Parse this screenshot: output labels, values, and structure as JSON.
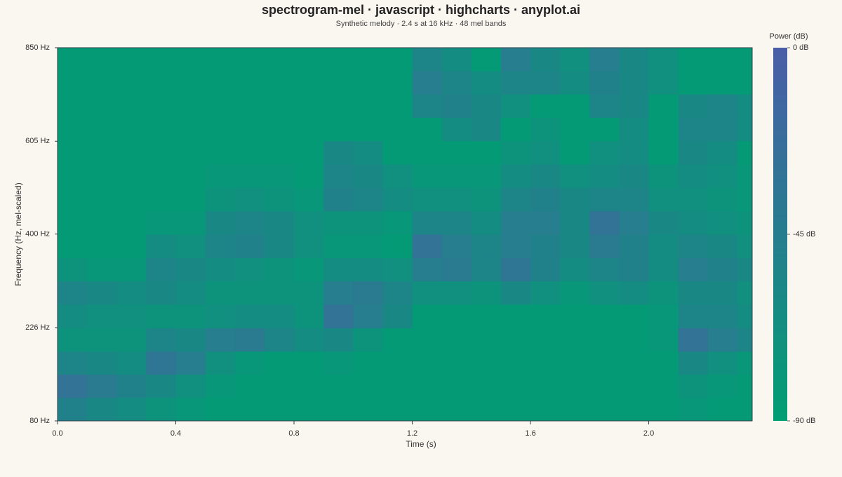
{
  "chart_data": {
    "type": "heatmap",
    "title": "spectrogram-mel · javascript · highcharts · anyplot.ai",
    "subtitle": "Synthetic melody · 2.4 s at 16 kHz · 48 mel bands",
    "x_label": "Time (s)",
    "y_label": "Frequency (Hz, mel-scaled)",
    "yscale": "mel",
    "xlim": [
      0,
      2.35
    ],
    "xticks": [
      {
        "value": 0,
        "label": "0.0"
      },
      0.4,
      0.8,
      1.2,
      1.6,
      {
        "value": 2,
        "label": "2.0"
      }
    ],
    "ylim": [
      80,
      850
    ],
    "yticks": [
      {
        "value": 80,
        "label": "80 Hz"
      },
      {
        "value": 226,
        "label": "226 Hz"
      },
      {
        "value": 400,
        "label": "400 Hz"
      },
      {
        "value": 605,
        "label": "605 Hz"
      },
      {
        "value": 850,
        "label": "850 Hz"
      }
    ],
    "colorbar_title": "Power (dB)",
    "zlim": [
      -90,
      0
    ],
    "zticks": [
      {
        "value": 0,
        "label": "0 dB"
      },
      {
        "value": -45,
        "label": "-45 dB"
      },
      {
        "value": -90,
        "label": "-90 dB"
      }
    ],
    "color_range": [
      "#009e73",
      "#4b5da8"
    ],
    "x": [
      0.05,
      0.15,
      0.25,
      0.35,
      0.45,
      0.55,
      0.65,
      0.75,
      0.85,
      0.95,
      1.05,
      1.15,
      1.25,
      1.35,
      1.45,
      1.55,
      1.65,
      1.75,
      1.85,
      1.95,
      2.05,
      2.15,
      2.25,
      2.35
    ],
    "y": [
      97,
      132,
      168,
      206,
      246,
      288,
      331,
      376,
      424,
      473,
      525,
      578,
      635,
      693,
      754,
      818
    ],
    "z": [
      [
        -50,
        -60,
        -65,
        -75,
        -80,
        -85,
        -85,
        -85,
        -85,
        -85,
        -85,
        -85,
        -85,
        -85,
        -85,
        -85,
        -85,
        -85,
        -85,
        -85,
        -85,
        -80,
        -85,
        -85
      ],
      [
        -30,
        -40,
        -50,
        -60,
        -70,
        -80,
        -85,
        -85,
        -85,
        -85,
        -85,
        -85,
        -85,
        -85,
        -85,
        -85,
        -85,
        -85,
        -85,
        -85,
        -85,
        -75,
        -80,
        -85
      ],
      [
        -55,
        -60,
        -65,
        -35,
        -45,
        -70,
        -80,
        -85,
        -85,
        -80,
        -85,
        -85,
        -85,
        -85,
        -85,
        -85,
        -85,
        -85,
        -85,
        -85,
        -85,
        -60,
        -70,
        -80
      ],
      [
        -75,
        -75,
        -75,
        -55,
        -60,
        -45,
        -40,
        -55,
        -65,
        -60,
        -75,
        -85,
        -85,
        -85,
        -85,
        -85,
        -85,
        -85,
        -85,
        -85,
        -80,
        -30,
        -45,
        -55
      ],
      [
        -65,
        -70,
        -70,
        -75,
        -75,
        -70,
        -65,
        -65,
        -75,
        -30,
        -45,
        -60,
        -85,
        -85,
        -85,
        -85,
        -85,
        -85,
        -85,
        -85,
        -80,
        -55,
        -55,
        -65
      ],
      [
        -55,
        -60,
        -65,
        -60,
        -65,
        -75,
        -75,
        -75,
        -75,
        -45,
        -40,
        -55,
        -70,
        -70,
        -75,
        -60,
        -70,
        -80,
        -70,
        -65,
        -75,
        -60,
        -60,
        -70
      ],
      [
        -75,
        -80,
        -80,
        -55,
        -60,
        -65,
        -70,
        -75,
        -80,
        -65,
        -65,
        -70,
        -45,
        -40,
        -55,
        -35,
        -50,
        -65,
        -55,
        -50,
        -65,
        -45,
        -50,
        -60
      ],
      [
        -85,
        -85,
        -85,
        -65,
        -70,
        -55,
        -50,
        -60,
        -70,
        -80,
        -80,
        -85,
        -30,
        -45,
        -55,
        -45,
        -50,
        -60,
        -40,
        -50,
        -65,
        -55,
        -60,
        -70
      ],
      [
        -85,
        -85,
        -85,
        -80,
        -80,
        -60,
        -55,
        -60,
        -70,
        -75,
        -75,
        -80,
        -55,
        -55,
        -65,
        -45,
        -45,
        -60,
        -30,
        -45,
        -60,
        -65,
        -70,
        -75
      ],
      [
        -85,
        -85,
        -85,
        -85,
        -85,
        -75,
        -70,
        -75,
        -80,
        -50,
        -55,
        -65,
        -70,
        -70,
        -75,
        -55,
        -50,
        -60,
        -55,
        -55,
        -70,
        -70,
        -75,
        -80
      ],
      [
        -85,
        -85,
        -85,
        -85,
        -85,
        -80,
        -80,
        -80,
        -85,
        -55,
        -60,
        -70,
        -80,
        -80,
        -80,
        -65,
        -60,
        -70,
        -65,
        -60,
        -75,
        -65,
        -70,
        -80
      ],
      [
        -85,
        -85,
        -85,
        -85,
        -85,
        -85,
        -85,
        -85,
        -85,
        -60,
        -65,
        -85,
        -85,
        -85,
        -85,
        -75,
        -70,
        -85,
        -70,
        -65,
        -85,
        -60,
        -65,
        -85
      ],
      [
        -85,
        -85,
        -85,
        -85,
        -85,
        -85,
        -85,
        -85,
        -85,
        -85,
        -85,
        -85,
        -85,
        -65,
        -60,
        -85,
        -75,
        -85,
        -85,
        -65,
        -85,
        -55,
        -55,
        -65
      ],
      [
        -85,
        -85,
        -85,
        -85,
        -85,
        -85,
        -85,
        -85,
        -85,
        -85,
        -85,
        -85,
        -55,
        -50,
        -60,
        -70,
        -85,
        -85,
        -55,
        -60,
        -85,
        -60,
        -55,
        -65
      ],
      [
        -85,
        -85,
        -85,
        -85,
        -85,
        -85,
        -85,
        -85,
        -85,
        -85,
        -85,
        -85,
        -45,
        -55,
        -65,
        -55,
        -55,
        -65,
        -50,
        -60,
        -70,
        -85,
        -85,
        -85
      ],
      [
        -85,
        -85,
        -85,
        -85,
        -85,
        -85,
        -85,
        -85,
        -85,
        -85,
        -85,
        -85,
        -55,
        -65,
        -85,
        -45,
        -60,
        -70,
        -45,
        -60,
        -70,
        -85,
        -85,
        -85
      ]
    ]
  }
}
